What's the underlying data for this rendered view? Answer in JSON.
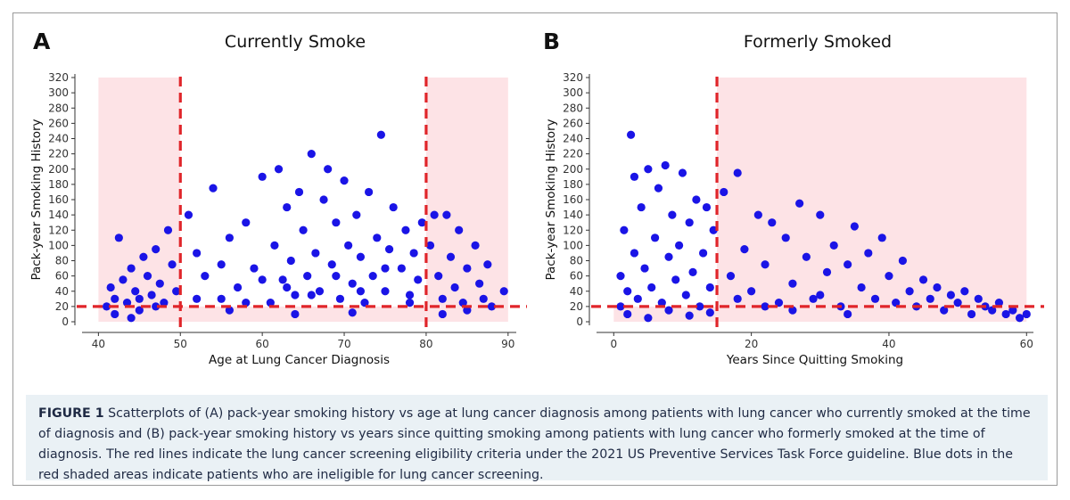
{
  "caption": {
    "label": "FIGURE 1",
    "text": "Scatterplots of (A) pack-year smoking history vs age at lung cancer diagnosis among patients with lung cancer who currently smoked at the time of diagnosis and (B) pack-year smoking history vs years since quitting smoking among patients with lung cancer who formerly smoked at the time of diagnosis. The red lines indicate the lung cancer screening eligibility criteria under the 2021 US Preventive Services Task Force guideline. Blue dots in the red shaded areas indicate patients who are ineligible for lung cancer screening."
  },
  "colors": {
    "point": "#1a14e6",
    "threshold_line": "#e0252a",
    "ineligible_region": "#fde3e6",
    "caption_background": "#eaf1f5"
  },
  "chart_data": [
    {
      "type": "scatter",
      "panel_letter": "A",
      "title": "Currently Smoke",
      "xlabel": "Age at Lung Cancer Diagnosis",
      "ylabel": "Pack-year Smoking History",
      "xlim": [
        40,
        90
      ],
      "ylim": [
        0,
        320
      ],
      "x_ticks": [
        40,
        50,
        60,
        70,
        80,
        90
      ],
      "y_ticks": [
        0,
        20,
        40,
        60,
        80,
        100,
        120,
        140,
        160,
        180,
        200,
        220,
        240,
        260,
        280,
        300,
        320
      ],
      "grid": false,
      "thresholds": {
        "vertical": [
          50,
          80
        ],
        "horizontal": [
          20
        ]
      },
      "ineligible_regions": [
        {
          "x": [
            40,
            50
          ],
          "y": [
            0,
            320
          ]
        },
        {
          "x": [
            80,
            90
          ],
          "y": [
            0,
            320
          ]
        },
        {
          "x": [
            50,
            80
          ],
          "y": [
            0,
            20
          ]
        }
      ],
      "series": [
        {
          "name": "Patients who currently smoked",
          "points": [
            [
              41,
              20
            ],
            [
              41.5,
              45
            ],
            [
              42,
              30
            ],
            [
              42.5,
              110
            ],
            [
              43,
              55
            ],
            [
              43.5,
              25
            ],
            [
              44,
              70
            ],
            [
              44.5,
              40
            ],
            [
              45,
              15
            ],
            [
              45.5,
              85
            ],
            [
              46,
              60
            ],
            [
              46.5,
              35
            ],
            [
              47,
              95
            ],
            [
              47.5,
              50
            ],
            [
              48,
              25
            ],
            [
              48.5,
              120
            ],
            [
              49,
              75
            ],
            [
              49.5,
              40
            ],
            [
              45,
              30
            ],
            [
              47,
              20
            ],
            [
              51,
              140
            ],
            [
              52,
              90
            ],
            [
              53,
              60
            ],
            [
              54,
              175
            ],
            [
              55,
              30
            ],
            [
              56,
              110
            ],
            [
              57,
              45
            ],
            [
              58,
              130
            ],
            [
              59,
              70
            ],
            [
              60,
              190
            ],
            [
              61,
              25
            ],
            [
              61.5,
              100
            ],
            [
              62,
              200
            ],
            [
              62.5,
              55
            ],
            [
              63,
              150
            ],
            [
              63.5,
              80
            ],
            [
              64,
              35
            ],
            [
              64.5,
              170
            ],
            [
              65,
              120
            ],
            [
              65.5,
              60
            ],
            [
              66,
              220
            ],
            [
              66.5,
              90
            ],
            [
              67,
              40
            ],
            [
              67.5,
              160
            ],
            [
              68,
              200
            ],
            [
              68.5,
              75
            ],
            [
              69,
              130
            ],
            [
              69.5,
              30
            ],
            [
              70,
              185
            ],
            [
              70.5,
              100
            ],
            [
              71,
              50
            ],
            [
              71.5,
              140
            ],
            [
              72,
              85
            ],
            [
              72.5,
              25
            ],
            [
              73,
              170
            ],
            [
              73.5,
              60
            ],
            [
              74,
              110
            ],
            [
              74.5,
              245
            ],
            [
              75,
              40
            ],
            [
              75.5,
              95
            ],
            [
              76,
              150
            ],
            [
              77,
              70
            ],
            [
              77.5,
              120
            ],
            [
              78,
              35
            ],
            [
              78.5,
              90
            ],
            [
              79,
              55
            ],
            [
              79.5,
              130
            ],
            [
              52,
              30
            ],
            [
              55,
              75
            ],
            [
              58,
              25
            ],
            [
              60,
              55
            ],
            [
              63,
              45
            ],
            [
              66,
              35
            ],
            [
              69,
              60
            ],
            [
              72,
              40
            ],
            [
              75,
              70
            ],
            [
              78,
              25
            ],
            [
              56,
              15
            ],
            [
              64,
              10
            ],
            [
              71,
              12
            ],
            [
              80.5,
              100
            ],
            [
              81,
              140
            ],
            [
              81.5,
              60
            ],
            [
              82,
              30
            ],
            [
              82.5,
              140
            ],
            [
              83,
              85
            ],
            [
              83.5,
              45
            ],
            [
              84,
              120
            ],
            [
              84.5,
              25
            ],
            [
              85,
              70
            ],
            [
              86,
              100
            ],
            [
              86.5,
              50
            ],
            [
              87,
              30
            ],
            [
              87.5,
              75
            ],
            [
              88,
              20
            ],
            [
              89.5,
              40
            ],
            [
              82,
              10
            ],
            [
              85,
              15
            ],
            [
              42,
              10
            ],
            [
              44,
              5
            ]
          ]
        }
      ]
    },
    {
      "type": "scatter",
      "panel_letter": "B",
      "title": "Formerly Smoked",
      "xlabel": "Years Since Quitting Smoking",
      "ylabel": "Pack-year Smoking History",
      "xlim": [
        0,
        60
      ],
      "ylim": [
        0,
        320
      ],
      "x_ticks": [
        0,
        20,
        40,
        60
      ],
      "y_ticks": [
        0,
        20,
        40,
        60,
        80,
        100,
        120,
        140,
        160,
        180,
        200,
        220,
        240,
        260,
        280,
        300,
        320
      ],
      "grid": false,
      "thresholds": {
        "vertical": [
          15
        ],
        "horizontal": [
          20
        ]
      },
      "ineligible_regions": [
        {
          "x": [
            15,
            60
          ],
          "y": [
            0,
            320
          ]
        },
        {
          "x": [
            0,
            15
          ],
          "y": [
            0,
            20
          ]
        }
      ],
      "series": [
        {
          "name": "Patients who formerly smoked",
          "points": [
            [
              1,
              20
            ],
            [
              1,
              60
            ],
            [
              1.5,
              120
            ],
            [
              2,
              40
            ],
            [
              2.5,
              245
            ],
            [
              3,
              90
            ],
            [
              3,
              190
            ],
            [
              3.5,
              30
            ],
            [
              4,
              150
            ],
            [
              4.5,
              70
            ],
            [
              5,
              200
            ],
            [
              5.5,
              45
            ],
            [
              6,
              110
            ],
            [
              6.5,
              175
            ],
            [
              7,
              25
            ],
            [
              7.5,
              205
            ],
            [
              8,
              85
            ],
            [
              8.5,
              140
            ],
            [
              9,
              55
            ],
            [
              9.5,
              100
            ],
            [
              10,
              195
            ],
            [
              10.5,
              35
            ],
            [
              11,
              130
            ],
            [
              11.5,
              65
            ],
            [
              12,
              160
            ],
            [
              12.5,
              20
            ],
            [
              13,
              90
            ],
            [
              13.5,
              150
            ],
            [
              14,
              45
            ],
            [
              14.5,
              120
            ],
            [
              2,
              10
            ],
            [
              5,
              5
            ],
            [
              8,
              15
            ],
            [
              11,
              8
            ],
            [
              14,
              12
            ],
            [
              16,
              170
            ],
            [
              17,
              60
            ],
            [
              18,
              195
            ],
            [
              19,
              95
            ],
            [
              20,
              40
            ],
            [
              21,
              140
            ],
            [
              22,
              75
            ],
            [
              23,
              130
            ],
            [
              24,
              25
            ],
            [
              25,
              110
            ],
            [
              26,
              50
            ],
            [
              27,
              155
            ],
            [
              28,
              85
            ],
            [
              29,
              30
            ],
            [
              30,
              140
            ],
            [
              31,
              65
            ],
            [
              32,
              100
            ],
            [
              33,
              20
            ],
            [
              34,
              75
            ],
            [
              35,
              125
            ],
            [
              36,
              45
            ],
            [
              37,
              90
            ],
            [
              38,
              30
            ],
            [
              39,
              110
            ],
            [
              40,
              60
            ],
            [
              41,
              25
            ],
            [
              42,
              80
            ],
            [
              43,
              40
            ],
            [
              44,
              20
            ],
            [
              45,
              55
            ],
            [
              46,
              30
            ],
            [
              47,
              45
            ],
            [
              48,
              15
            ],
            [
              49,
              35
            ],
            [
              50,
              25
            ],
            [
              51,
              40
            ],
            [
              52,
              10
            ],
            [
              53,
              30
            ],
            [
              54,
              20
            ],
            [
              55,
              15
            ],
            [
              56,
              25
            ],
            [
              57,
              10
            ],
            [
              58,
              15
            ],
            [
              59,
              5
            ],
            [
              60,
              10
            ],
            [
              18,
              30
            ],
            [
              22,
              20
            ],
            [
              26,
              15
            ],
            [
              30,
              35
            ],
            [
              34,
              10
            ]
          ]
        }
      ]
    }
  ]
}
